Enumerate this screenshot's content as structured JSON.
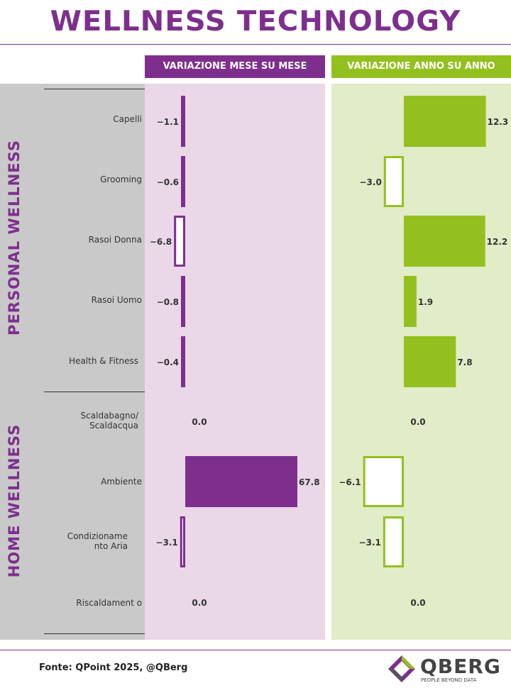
{
  "title": "WELLNESS TECHNOLOGY",
  "panels": {
    "mom_header": "VARIAZIONE MESE SU MESE",
    "yoy_header": "VARIAZIONE ANNO SU ANNO"
  },
  "groups": [
    {
      "label": "PERSONAL WELLNESS"
    },
    {
      "label": "HOME WELLNESS"
    }
  ],
  "chart_data": {
    "type": "bar",
    "orientation": "horizontal",
    "categories": [
      "Capelli",
      "Grooming",
      "Rasoi Donna",
      "Rasoi Uomo",
      "Health & Fitness",
      "Scaldabagno/ Scaldacqua",
      "Ambiente",
      "Condizioname nto Aria",
      "Riscaldament o"
    ],
    "series": [
      {
        "name": "VARIAZIONE MESE SU MESE",
        "values": [
          -1.1,
          -0.6,
          -6.8,
          -0.8,
          -0.4,
          0.0,
          67.8,
          -3.1,
          0.0
        ],
        "labels": [
          "−1.1",
          "−0.6",
          "−6.8",
          "−0.8",
          "−0.4",
          "0.0",
          "67.8",
          "−3.1",
          "0.0"
        ]
      },
      {
        "name": "VARIAZIONE ANNO SU ANNO",
        "values": [
          12.3,
          -3.0,
          12.2,
          1.9,
          7.8,
          0.0,
          -6.1,
          -3.1,
          0.0
        ],
        "labels": [
          "12.3",
          "−3.0",
          "12.2",
          "1.9",
          "7.8",
          "0.0",
          "−6.1",
          "−3.1",
          "0.0"
        ]
      }
    ]
  },
  "colors": {
    "purple": "#7e2f8e",
    "green": "#93c01f",
    "purple_bg": "#ead8e8",
    "green_bg": "#e1ecc8",
    "group_bg": "#c9c9c9"
  },
  "footer": {
    "source": "Fonte: QPoint 2025, @QBerg",
    "logo_text": "QBERG",
    "logo_tagline": "PEOPLE BEYOND DATA"
  }
}
